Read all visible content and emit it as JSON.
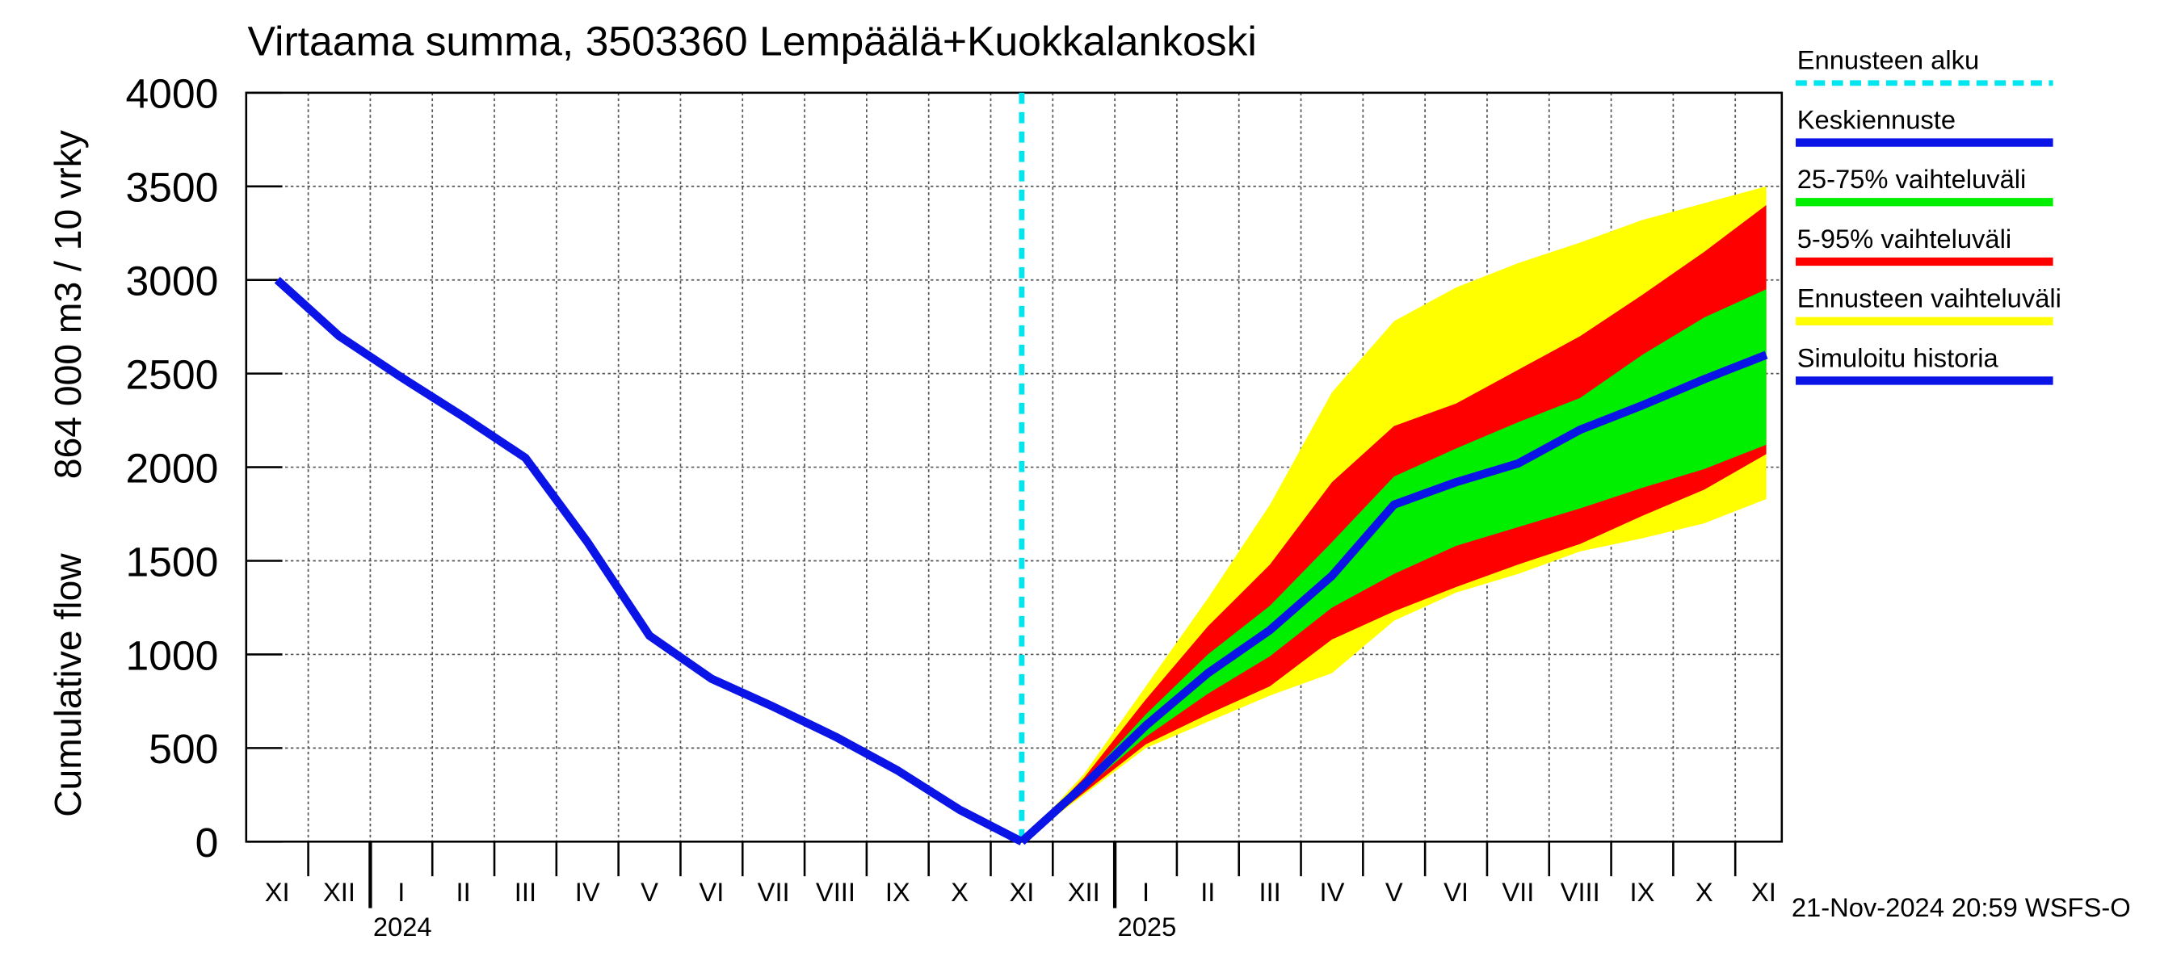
{
  "chart_data": {
    "type": "line",
    "title": "Virtaama summa, 3503360 Lempäälä+Kuokkalankoski",
    "ylabel": [
      "864 000 m3 / 10 vrky",
      "Cumulative flow"
    ],
    "footer": "21-Nov-2024 20:59 WSFS-O",
    "categories": [
      "XI",
      "XII",
      "I",
      "II",
      "III",
      "IV",
      "V",
      "VI",
      "VII",
      "VIII",
      "IX",
      "X",
      "XI",
      "XII",
      "I",
      "II",
      "III",
      "IV",
      "V",
      "VI",
      "VII",
      "VIII",
      "IX",
      "X",
      "XI"
    ],
    "years": [
      "2024",
      "2025"
    ],
    "ylim": [
      0,
      4000
    ],
    "yticks": [
      0,
      500,
      1000,
      1500,
      2000,
      2500,
      3000,
      3500,
      4000
    ],
    "grid": true,
    "series": [
      {
        "name": "Ennusteen alku",
        "color": "#00e5ee",
        "kind": "vline"
      },
      {
        "name": "Keskiennuste",
        "color": "#0a14e6",
        "kind": "line",
        "values": [
          null,
          null,
          null,
          null,
          null,
          null,
          null,
          null,
          null,
          null,
          null,
          null,
          0,
          300,
          620,
          900,
          1130,
          1420,
          1800,
          1920,
          2020,
          2200,
          2330,
          2470,
          2600
        ]
      },
      {
        "name": "25-75% vaihteluväli",
        "color": "#00ee00",
        "kind": "band",
        "low": [
          null,
          null,
          null,
          null,
          null,
          null,
          null,
          null,
          null,
          null,
          null,
          null,
          0,
          280,
          560,
          790,
          990,
          1250,
          1430,
          1580,
          1680,
          1780,
          1890,
          1990,
          2120
        ],
        "high": [
          null,
          null,
          null,
          null,
          null,
          null,
          null,
          null,
          null,
          null,
          null,
          null,
          0,
          320,
          680,
          1000,
          1260,
          1600,
          1950,
          2100,
          2240,
          2370,
          2600,
          2800,
          2950
        ]
      },
      {
        "name": "5-95% vaihteluväli",
        "color": "#ff0000",
        "kind": "band",
        "low": [
          null,
          null,
          null,
          null,
          null,
          null,
          null,
          null,
          null,
          null,
          null,
          null,
          0,
          260,
          520,
          680,
          830,
          1080,
          1230,
          1360,
          1480,
          1590,
          1740,
          1880,
          2070
        ],
        "high": [
          null,
          null,
          null,
          null,
          null,
          null,
          null,
          null,
          null,
          null,
          null,
          null,
          0,
          340,
          760,
          1150,
          1480,
          1920,
          2220,
          2340,
          2520,
          2700,
          2920,
          3150,
          3400
        ]
      },
      {
        "name": "Ennusteen vaihteluväli",
        "color": "#ffff00",
        "kind": "band",
        "low": [
          null,
          null,
          null,
          null,
          null,
          null,
          null,
          null,
          null,
          null,
          null,
          null,
          0,
          250,
          500,
          640,
          780,
          900,
          1180,
          1330,
          1430,
          1550,
          1620,
          1700,
          1830
        ],
        "high": [
          null,
          null,
          null,
          null,
          null,
          null,
          null,
          null,
          null,
          null,
          null,
          null,
          0,
          360,
          830,
          1300,
          1800,
          2400,
          2780,
          2960,
          3090,
          3200,
          3320,
          3410,
          3500
        ]
      },
      {
        "name": "Simuloitu historia",
        "color": "#0a14e6",
        "kind": "line",
        "values": [
          3000,
          2700,
          2480,
          2270,
          2050,
          1600,
          1100,
          870,
          720,
          560,
          380,
          170,
          0,
          null,
          null,
          null,
          null,
          null,
          null,
          null,
          null,
          null,
          null,
          null,
          null
        ]
      }
    ]
  }
}
